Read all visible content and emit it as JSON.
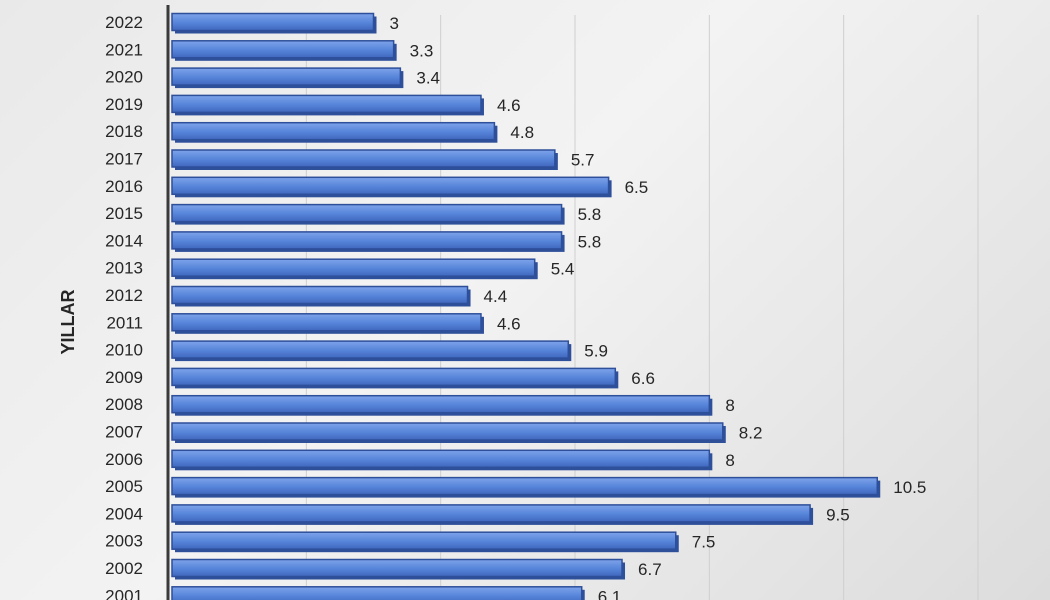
{
  "chart_data": {
    "type": "bar",
    "orientation": "horizontal",
    "ylabel": "YILLAR",
    "xlim": [
      0,
      12
    ],
    "grid": true,
    "bar_color": "#4f7dd6",
    "bar_edge_color": "#2e4f9a",
    "categories": [
      "2022",
      "2021",
      "2020",
      "2019",
      "2018",
      "2017",
      "2016",
      "2015",
      "2014",
      "2013",
      "2012",
      "2011",
      "2010",
      "2009",
      "2008",
      "2007",
      "2006",
      "2005",
      "2004",
      "2003",
      "2002",
      "2001"
    ],
    "values": [
      3,
      3.3,
      3.4,
      4.6,
      4.8,
      5.7,
      6.5,
      5.8,
      5.8,
      5.4,
      4.4,
      4.6,
      5.9,
      6.6,
      8,
      8.2,
      8,
      10.5,
      9.5,
      7.5,
      6.7,
      6.1
    ]
  }
}
